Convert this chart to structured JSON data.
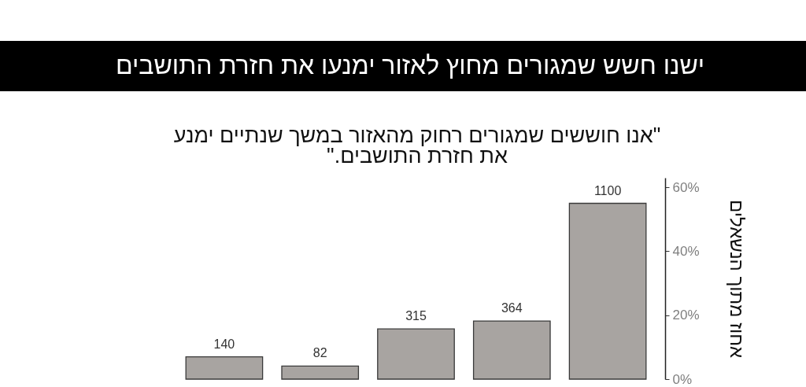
{
  "chart_data": {
    "type": "bar",
    "title": "ישנו חשש שמגורים מחוץ לאזור ימנעו את חזרת התושבים",
    "subtitle": "\"אנו חוששים שמגורים רחוק מהאזור במשך שנתיים ימנע את חזרת התושבים.\"",
    "ylabel": "אחוז מתוך הנשאלים",
    "categories": [
      null,
      null,
      null,
      null,
      null
    ],
    "values": [
      7.0,
      4.1,
      15.7,
      18.2,
      55.0
    ],
    "color": "#a8a4a1",
    "annotations": [
      {
        "text": "140",
        "y": 7.0
      },
      {
        "text": "82",
        "y": 4.1
      },
      {
        "text": "315",
        "y": 15.7
      },
      {
        "text": "364",
        "y": 18.2
      },
      {
        "text": "1100",
        "y": 55.0
      }
    ],
    "ylim": [
      0,
      63
    ],
    "yticks": [
      {
        "value": 0,
        "label": "0%"
      },
      {
        "value": 20,
        "label": "20%"
      },
      {
        "value": 40,
        "label": "40%"
      },
      {
        "value": 60,
        "label": "60%"
      }
    ],
    "tick_labels": "y"
  }
}
